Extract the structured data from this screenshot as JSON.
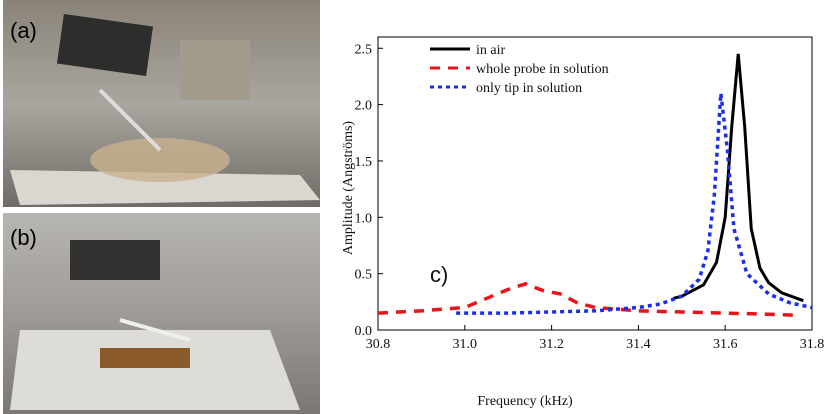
{
  "panels": [
    "(a)",
    "(b)"
  ],
  "chart_data": {
    "type": "line",
    "xlabel": "Frequency (kHz)",
    "ylabel": "Amplitude (Angströms)",
    "annotation": "c)",
    "xlim": [
      30.8,
      31.8
    ],
    "ylim": [
      0,
      2.6
    ],
    "xticks": [
      30.8,
      {
        "value": 31.0,
        "label": "31.0"
      },
      31.2,
      31.4,
      31.6,
      31.8
    ],
    "yticks": [
      {
        "value": 0,
        "label": "0.0"
      },
      0.5,
      {
        "value": 1,
        "label": "1.0"
      },
      1.5,
      {
        "value": 2,
        "label": "2.0"
      },
      2.5
    ],
    "legend": "top-left",
    "series": [
      {
        "name": "in air",
        "color": "#000000",
        "dash": "solid",
        "x": [
          31.48,
          31.5,
          31.55,
          31.58,
          31.6,
          31.615,
          31.63,
          31.645,
          31.66,
          31.68,
          31.7,
          31.73,
          31.78
        ],
        "values": [
          0.28,
          0.3,
          0.4,
          0.6,
          1.0,
          1.8,
          2.45,
          1.8,
          0.9,
          0.55,
          0.42,
          0.33,
          0.26
        ]
      },
      {
        "name": "whole probe in solution",
        "color": "#e8141a",
        "dash": "dashed",
        "x": [
          30.8,
          30.9,
          31.0,
          31.05,
          31.1,
          31.14,
          31.18,
          31.22,
          31.26,
          31.3,
          31.4,
          31.5,
          31.6,
          31.7,
          31.77
        ],
        "values": [
          0.15,
          0.17,
          0.2,
          0.28,
          0.36,
          0.41,
          0.35,
          0.32,
          0.24,
          0.2,
          0.17,
          0.16,
          0.15,
          0.14,
          0.13
        ]
      },
      {
        "name": "only tip in solution",
        "color": "#1a2de8",
        "dash": "dotted",
        "x": [
          30.98,
          31.1,
          31.2,
          31.3,
          31.4,
          31.45,
          31.5,
          31.54,
          31.56,
          31.575,
          31.59,
          31.605,
          31.62,
          31.65,
          31.7,
          31.75,
          31.8
        ],
        "values": [
          0.15,
          0.15,
          0.16,
          0.17,
          0.2,
          0.23,
          0.3,
          0.45,
          0.7,
          1.2,
          2.1,
          1.6,
          0.9,
          0.5,
          0.32,
          0.24,
          0.2
        ]
      }
    ]
  }
}
